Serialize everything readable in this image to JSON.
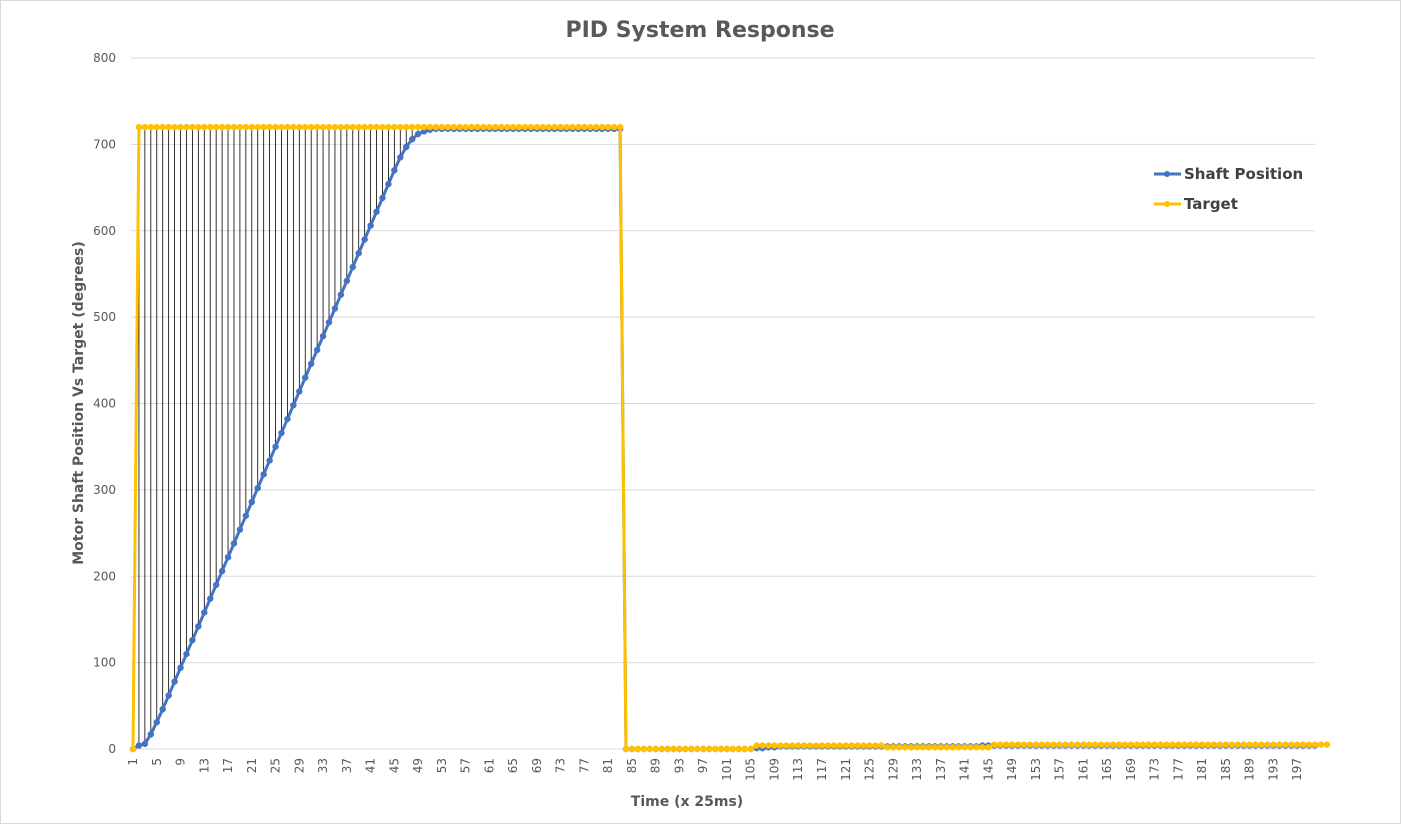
{
  "chart_data": {
    "type": "line",
    "title": "PID System Response",
    "xlabel": "Time (x 25ms)",
    "ylabel": "Motor Shaft Position Vs Target (degrees)",
    "ylim": [
      0,
      800
    ],
    "yticks": [
      0,
      100,
      200,
      300,
      400,
      500,
      600,
      700,
      800
    ],
    "x_start": 1,
    "x_end": 200,
    "x_tick_labels": [
      1,
      5,
      9,
      13,
      17,
      21,
      25,
      29,
      33,
      37,
      41,
      45,
      49,
      53,
      57,
      61,
      65,
      69,
      73,
      77,
      81,
      85,
      89,
      93,
      97,
      101,
      105,
      109,
      113,
      117,
      121,
      125,
      129,
      133,
      137,
      141,
      145,
      149,
      153,
      157,
      161,
      165,
      169,
      173,
      177,
      181,
      185,
      189,
      193,
      197
    ],
    "grid": true,
    "legend_position": "right",
    "drop_lines": "between series, x 1-49",
    "series": [
      {
        "name": "Shaft Position",
        "color": "#4472c4",
        "values": [
          0,
          4,
          6,
          17,
          31,
          46,
          62,
          78,
          94,
          110,
          126,
          142,
          158,
          174,
          190,
          206,
          222,
          238,
          254,
          270,
          286,
          302,
          318,
          334,
          350,
          366,
          382,
          398,
          414,
          430,
          446,
          462,
          478,
          494,
          510,
          526,
          542,
          558,
          574,
          590,
          606,
          622,
          638,
          654,
          670,
          685,
          697,
          706,
          712,
          715,
          717,
          718,
          718,
          718,
          718,
          718,
          718,
          718,
          718,
          718,
          718,
          718,
          718,
          718,
          718,
          718,
          718,
          718,
          718,
          718,
          718,
          718,
          718,
          718,
          718,
          718,
          718,
          718,
          718,
          718,
          718,
          718,
          718,
          0,
          0,
          0,
          0,
          0,
          0,
          0,
          0,
          0,
          0,
          0,
          0,
          0,
          0,
          0,
          0,
          0,
          0,
          0,
          0,
          0,
          0,
          1,
          1,
          2,
          2,
          3,
          3,
          3,
          3,
          3,
          3,
          3,
          3,
          3,
          3,
          3,
          3,
          3,
          3,
          3,
          3,
          3,
          3,
          3,
          3,
          3,
          3,
          3,
          3,
          3,
          3,
          3,
          3,
          3,
          3,
          3,
          3,
          3,
          3,
          4,
          4,
          4,
          4,
          4,
          4,
          4,
          4,
          4,
          4,
          4,
          4,
          4,
          4,
          4,
          4,
          4,
          4,
          4,
          4,
          4,
          4,
          4,
          4,
          4,
          4,
          4,
          4,
          4,
          4,
          4,
          4,
          4,
          4,
          4,
          4,
          4,
          4,
          4,
          4,
          4,
          4,
          4,
          4,
          4,
          4,
          4,
          4,
          4,
          4,
          4,
          4,
          4,
          4,
          4,
          4,
          4
        ]
      },
      {
        "name": "Target",
        "color": "#ffc000",
        "values": [
          0,
          720,
          720,
          720,
          720,
          720,
          720,
          720,
          720,
          720,
          720,
          720,
          720,
          720,
          720,
          720,
          720,
          720,
          720,
          720,
          720,
          720,
          720,
          720,
          720,
          720,
          720,
          720,
          720,
          720,
          720,
          720,
          720,
          720,
          720,
          720,
          720,
          720,
          720,
          720,
          720,
          720,
          720,
          720,
          720,
          720,
          720,
          720,
          720,
          720,
          720,
          720,
          720,
          720,
          720,
          720,
          720,
          720,
          720,
          720,
          720,
          720,
          720,
          720,
          720,
          720,
          720,
          720,
          720,
          720,
          720,
          720,
          720,
          720,
          720,
          720,
          720,
          720,
          720,
          720,
          720,
          720,
          720,
          0,
          0,
          0,
          0,
          0,
          0,
          0,
          0,
          0,
          0,
          0,
          0,
          0,
          0,
          0,
          0,
          0,
          0,
          0,
          0,
          0,
          0,
          4,
          4,
          4,
          4,
          4,
          4,
          4,
          4,
          4,
          4,
          4,
          4,
          4,
          4,
          4,
          4,
          4,
          4,
          4,
          4,
          4,
          4,
          2,
          2,
          2,
          2,
          2,
          2,
          2,
          2,
          2,
          2,
          2,
          2,
          2,
          2,
          2,
          2,
          2,
          2,
          5,
          5,
          5,
          5,
          5,
          5,
          5,
          5,
          5,
          5,
          5,
          5,
          5,
          5,
          5,
          5,
          5,
          5,
          5,
          5,
          5,
          5,
          5,
          5,
          5,
          5,
          5,
          5,
          5,
          5,
          5,
          5,
          5,
          5,
          5,
          5,
          5,
          5,
          5,
          5,
          5,
          5,
          5,
          5,
          5,
          5,
          5,
          5,
          5,
          5,
          5,
          5,
          5,
          5,
          5,
          5,
          5
        ]
      }
    ]
  }
}
